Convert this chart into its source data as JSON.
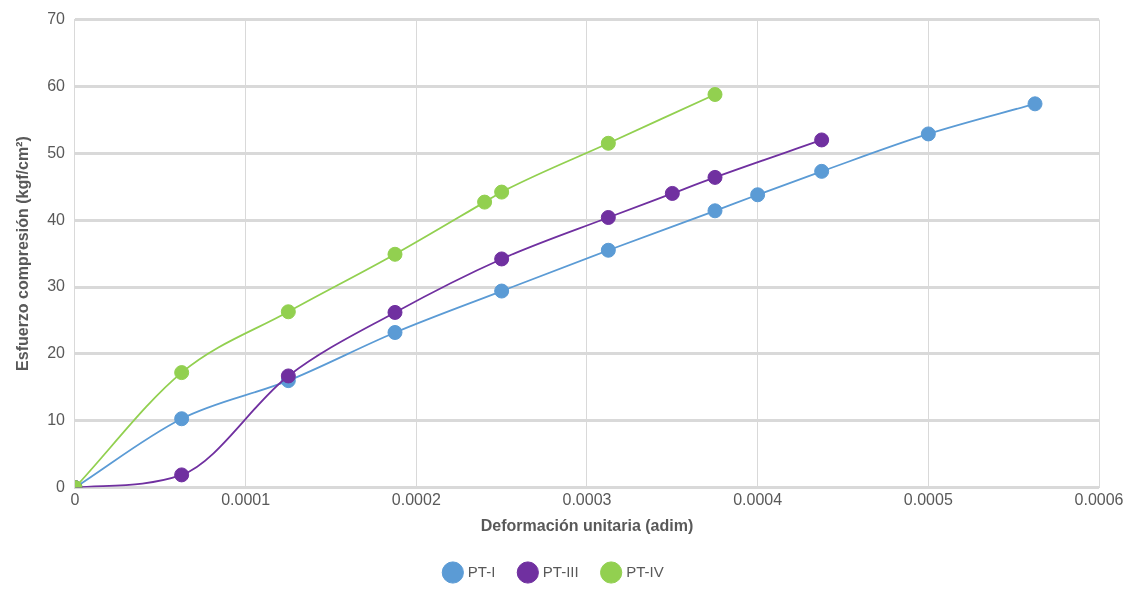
{
  "chart_data": {
    "type": "line",
    "xlabel": "Deformación unitaria (adim)",
    "ylabel": "Esfuerzo compresión (kgf/cm²)",
    "xlim": [
      0,
      0.0006
    ],
    "xticks": [
      0,
      0.0001,
      0.0002,
      0.0003,
      0.0004,
      0.0005,
      0.0006
    ],
    "ylim": [
      0,
      70
    ],
    "yticks": [
      0,
      10,
      20,
      30,
      40,
      50,
      60,
      70
    ],
    "grid": true,
    "legend": "bottom",
    "marker": "circle",
    "line_style": "solid",
    "series": [
      {
        "name": "PT-I",
        "color": "#5b9bd5",
        "x": [
          0,
          6.25e-05,
          0.000125,
          0.0001875,
          0.00025,
          0.0003125,
          0.000375,
          0.0004,
          0.0004375,
          0.0005,
          0.0005625
        ],
        "values": [
          0,
          10.3,
          16,
          23.2,
          29.4,
          35.5,
          41.4,
          43.8,
          47.3,
          52.9,
          57.4
        ]
      },
      {
        "name": "PT-III",
        "color": "#7030a0",
        "x": [
          0,
          6.25e-05,
          0.000125,
          0.0001875,
          0.00025,
          0.0003125,
          0.00035,
          0.000375,
          0.0004375
        ],
        "values": [
          0,
          1.9,
          16.7,
          26.2,
          34.2,
          40.4,
          44,
          46.4,
          52
        ]
      },
      {
        "name": "PT-IV",
        "color": "#92d050",
        "x": [
          0,
          6.25e-05,
          0.000125,
          0.0001875,
          0.00024,
          0.00025,
          0.0003125,
          0.000375
        ],
        "values": [
          0,
          17.2,
          26.3,
          34.9,
          42.7,
          44.2,
          51.5,
          58.8
        ]
      }
    ]
  }
}
